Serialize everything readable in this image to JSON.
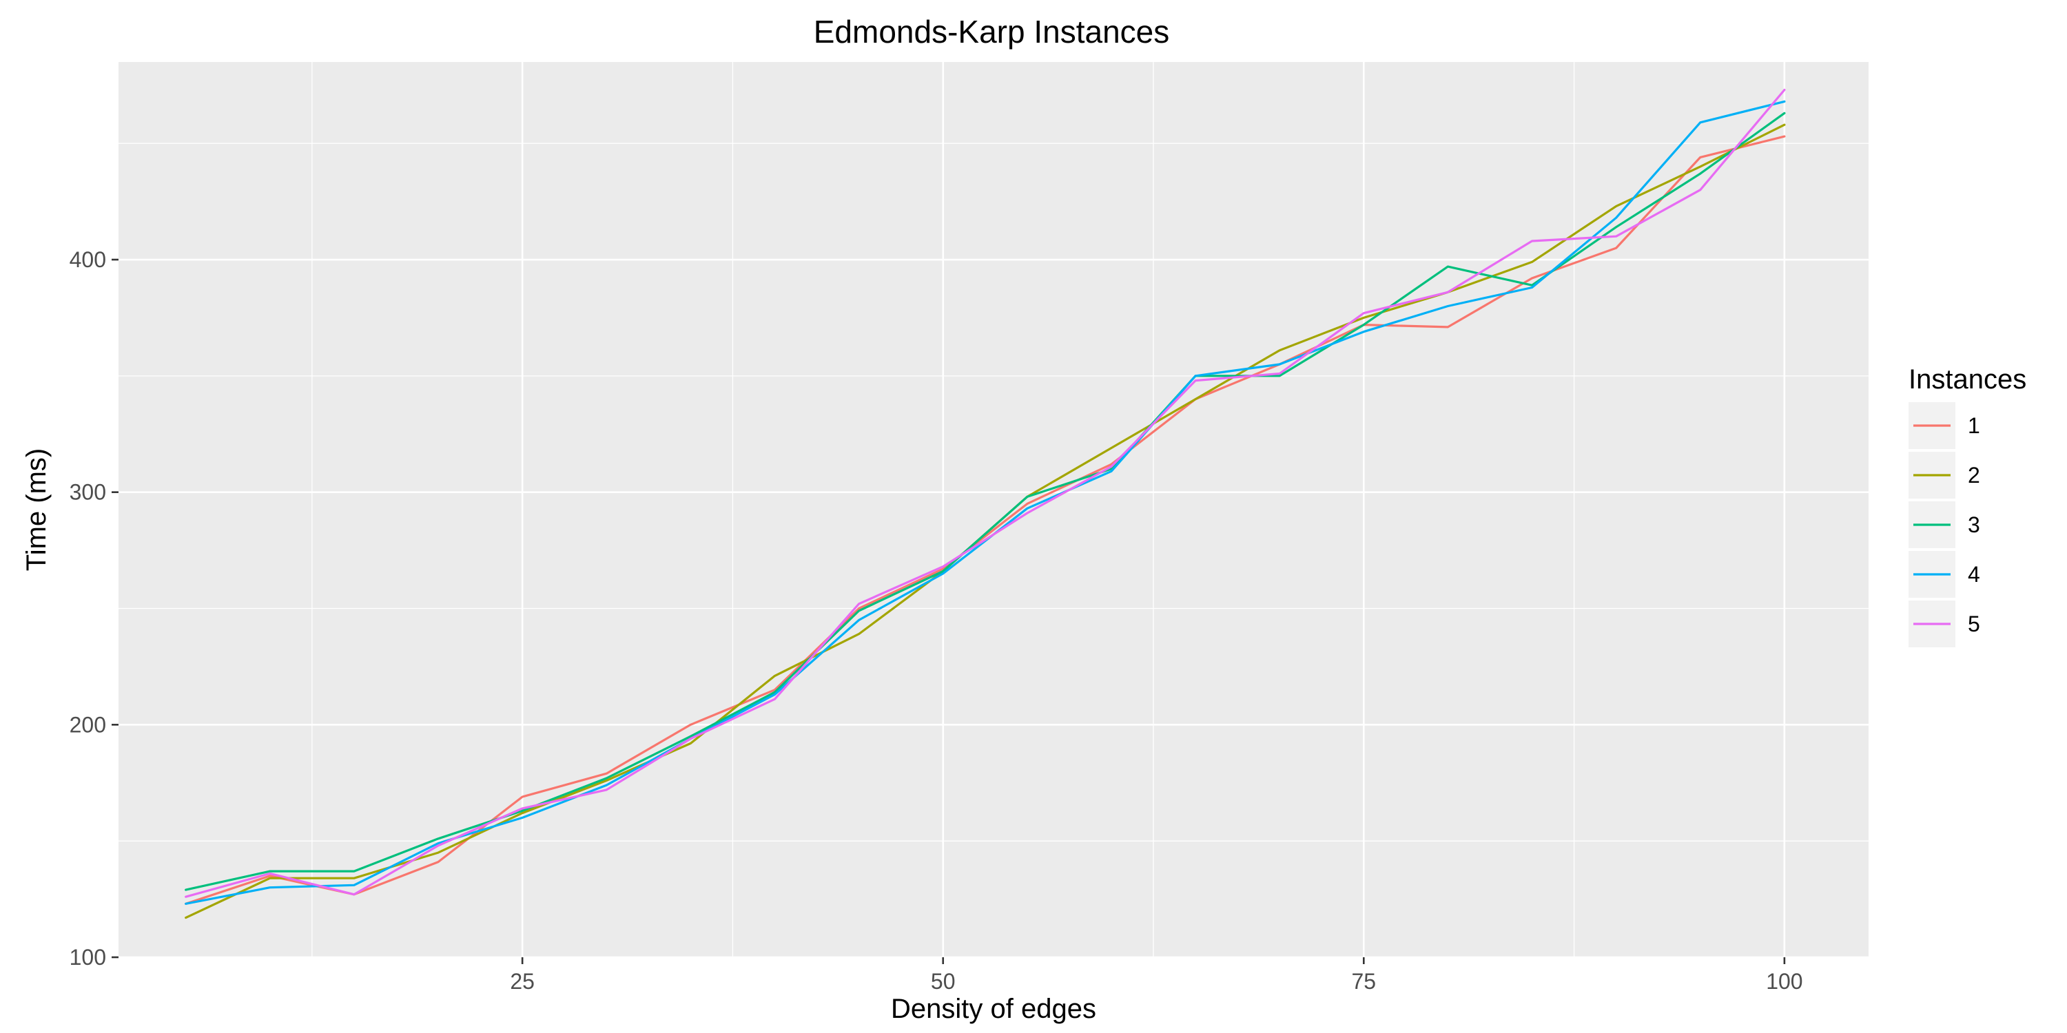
{
  "chart_data": {
    "type": "line",
    "title": "Edmonds-Karp Instances",
    "xlabel": "Density of edges",
    "ylabel": "Time (ms)",
    "xlim": [
      1,
      105
    ],
    "ylim": [
      100,
      485
    ],
    "x_ticks": [
      25,
      50,
      75,
      100
    ],
    "x_minor_ticks": [
      12.5,
      37.5,
      62.5,
      87.5
    ],
    "y_ticks": [
      100,
      200,
      300,
      400
    ],
    "y_minor_ticks": [
      150,
      250,
      350,
      450
    ],
    "grid": true,
    "legend": {
      "title": "Instances",
      "position": "right"
    },
    "x": [
      5,
      10,
      15,
      20,
      25,
      30,
      35,
      40,
      45,
      50,
      55,
      60,
      65,
      70,
      75,
      80,
      85,
      90,
      95,
      100
    ],
    "series": [
      {
        "name": "1",
        "color": "#F8766D",
        "values": [
          123,
          135,
          127,
          141,
          169,
          179,
          200,
          215,
          250,
          267,
          295,
          312,
          340,
          355,
          372,
          371,
          392,
          405,
          444,
          453
        ]
      },
      {
        "name": "2",
        "color": "#A3A500",
        "values": [
          117,
          134,
          134,
          145,
          162,
          176,
          192,
          221,
          239,
          266,
          298,
          319,
          340,
          361,
          375,
          386,
          399,
          423,
          440,
          458
        ]
      },
      {
        "name": "3",
        "color": "#00BF7D",
        "values": [
          129,
          137,
          137,
          151,
          163,
          177,
          195,
          214,
          249,
          266,
          298,
          310,
          350,
          350,
          372,
          397,
          389,
          414,
          437,
          463
        ]
      },
      {
        "name": "4",
        "color": "#00B0F6",
        "values": [
          123,
          130,
          131,
          149,
          160,
          174,
          194,
          213,
          245,
          265,
          293,
          309,
          350,
          355,
          369,
          380,
          388,
          418,
          459,
          468
        ]
      },
      {
        "name": "5",
        "color": "#E76BF3",
        "values": [
          126,
          136,
          127,
          148,
          164,
          172,
          194,
          211,
          252,
          268,
          291,
          311,
          348,
          351,
          377,
          386,
          408,
          410,
          430,
          473
        ]
      }
    ]
  }
}
